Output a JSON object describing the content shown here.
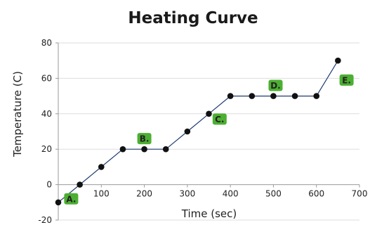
{
  "chart_data": {
    "type": "line",
    "title": "Heating Curve",
    "xlabel": "Time (sec)",
    "ylabel": "Temperature (C)",
    "xlim": [
      0,
      700
    ],
    "ylim": [
      -20,
      80
    ],
    "x_ticks": [
      0,
      100,
      200,
      300,
      400,
      500,
      600,
      700
    ],
    "y_ticks": [
      -20,
      0,
      20,
      40,
      60,
      80
    ],
    "grid": true,
    "series": [
      {
        "color": "#1f3b73",
        "marker_color": "#111111",
        "x": [
          0,
          50,
          100,
          150,
          200,
          250,
          300,
          350,
          400,
          450,
          500,
          550,
          600,
          650
        ],
        "y": [
          -10,
          0,
          10,
          20,
          20,
          20,
          30,
          40,
          50,
          50,
          50,
          50,
          50,
          70
        ]
      }
    ],
    "annotations": [
      {
        "text": "A.",
        "x": 30,
        "y": -8
      },
      {
        "text": "B.",
        "x": 200,
        "y": 26
      },
      {
        "text": "C.",
        "x": 375,
        "y": 37
      },
      {
        "text": "D.",
        "x": 505,
        "y": 56
      },
      {
        "text": "E.",
        "x": 670,
        "y": 59
      }
    ],
    "colors": {
      "grid": "#dddddd",
      "axis": "#9a9a9a",
      "label_fill": "#4caf32"
    }
  }
}
